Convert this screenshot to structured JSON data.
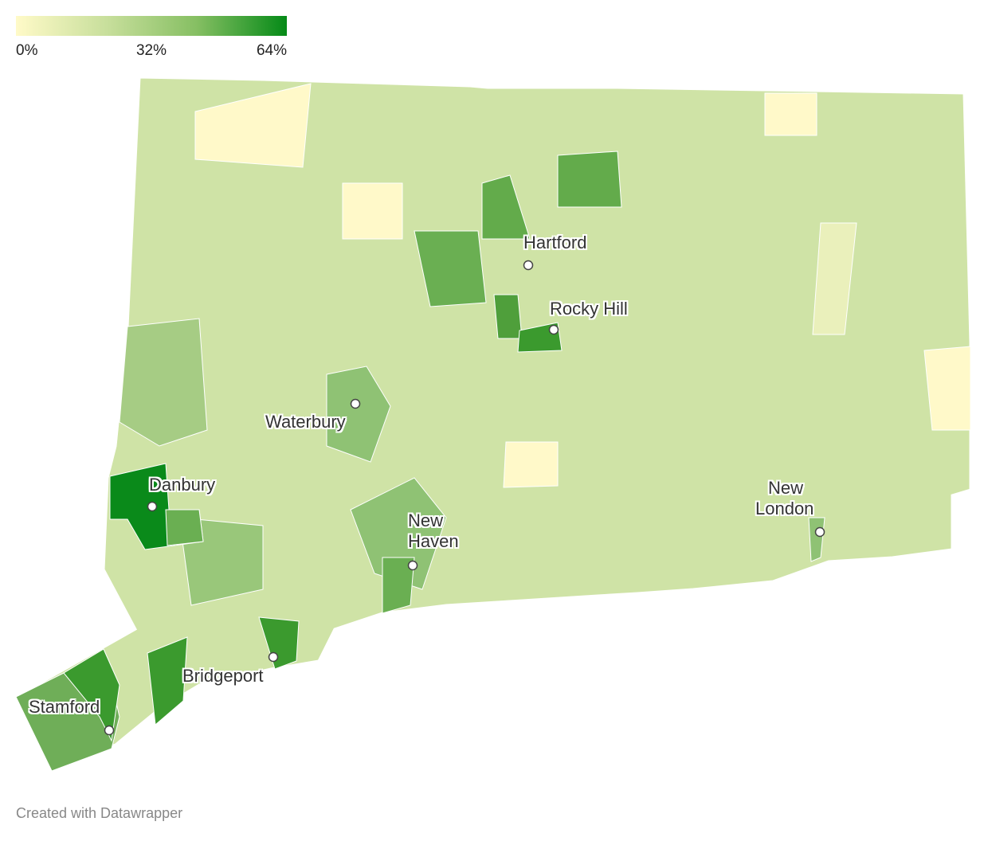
{
  "legend": {
    "colors": [
      "#fffac8",
      "#c8df9c",
      "#86bf63",
      "#058a17"
    ],
    "ticks": [
      {
        "value": 0,
        "label": "0%"
      },
      {
        "value": 32,
        "label": "32%"
      },
      {
        "value": 64,
        "label": "64%"
      }
    ]
  },
  "cities": [
    "Hartford",
    "Rocky Hill",
    "Waterbury",
    "Danbury",
    "New Haven",
    "Bridgeport",
    "Stamford",
    "New London"
  ],
  "footer": "Created with Datawrapper"
}
